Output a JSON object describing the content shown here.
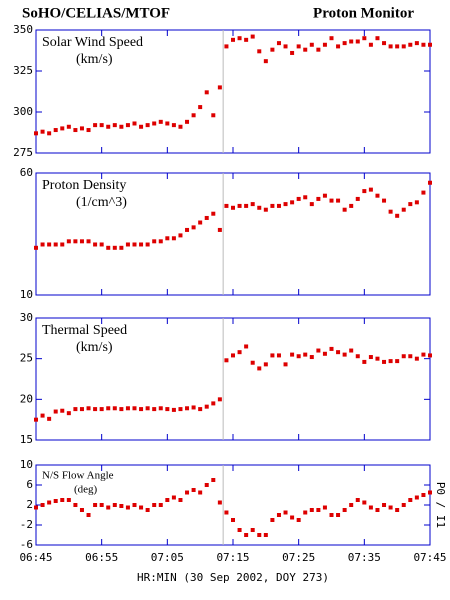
{
  "chart_data": [
    {
      "type": "scatter",
      "title": "SoHO/CELIAS/MTOF",
      "subtitle": "Proton Monitor",
      "label": "Solar Wind Speed",
      "unit": "(km/s)",
      "color": "#dd0000",
      "vline": 433.5,
      "x": [
        405,
        406,
        407,
        408,
        409,
        410,
        411,
        412,
        413,
        414,
        415,
        416,
        417,
        418,
        419,
        420,
        421,
        422,
        423,
        424,
        425,
        426,
        427,
        428,
        429,
        430,
        431,
        432,
        433,
        434,
        435,
        436,
        437,
        438,
        439,
        440,
        441,
        442,
        443,
        444,
        445,
        446,
        447,
        448,
        449,
        450,
        451,
        452,
        453,
        454,
        455,
        456,
        457,
        458,
        459,
        460,
        461,
        462,
        463,
        464,
        465
      ],
      "values": [
        287,
        288,
        287,
        289,
        290,
        291,
        289,
        290,
        289,
        292,
        292,
        291,
        292,
        291,
        292,
        293,
        291,
        292,
        293,
        294,
        293,
        292,
        291,
        294,
        298,
        303,
        312,
        298,
        315,
        340,
        344,
        345,
        344,
        346,
        337,
        331,
        338,
        342,
        340,
        336,
        340,
        338,
        341,
        338,
        341,
        345,
        340,
        342,
        343,
        343,
        345,
        341,
        345,
        342,
        340,
        340,
        340,
        341,
        342,
        341,
        341
      ],
      "xlim": [
        405,
        465
      ],
      "xticks": [
        405,
        415,
        425,
        435,
        445,
        455,
        465
      ],
      "ylim": [
        275,
        350
      ],
      "yticks": [
        275,
        300,
        325,
        350
      ]
    },
    {
      "type": "scatter",
      "label": "Proton Density",
      "unit": "(1/cm^3)",
      "color": "#dd0000",
      "vline": 433.5,
      "log_scale": true,
      "x": [
        405,
        406,
        407,
        408,
        409,
        410,
        411,
        412,
        413,
        414,
        415,
        416,
        417,
        418,
        419,
        420,
        421,
        422,
        423,
        424,
        425,
        426,
        427,
        428,
        429,
        430,
        431,
        432,
        433,
        434,
        435,
        436,
        437,
        438,
        439,
        440,
        441,
        442,
        443,
        444,
        445,
        446,
        447,
        448,
        449,
        450,
        451,
        452,
        453,
        454,
        455,
        456,
        457,
        458,
        459,
        460,
        461,
        462,
        463,
        464,
        465
      ],
      "values": [
        20,
        21,
        21,
        21,
        21,
        22,
        22,
        22,
        22,
        21,
        21,
        20,
        20,
        20,
        21,
        21,
        21,
        21,
        22,
        22,
        23,
        23,
        24,
        26,
        27,
        29,
        31,
        33,
        26,
        37,
        36,
        37,
        37,
        38,
        36,
        35,
        37,
        37,
        38,
        39,
        41,
        42,
        38,
        41,
        43,
        40,
        40,
        35,
        37,
        41,
        46,
        47,
        43,
        40,
        34,
        32,
        35,
        38,
        39,
        45,
        52
      ],
      "xlim": [
        405,
        465
      ],
      "xticks": [
        405,
        415,
        425,
        435,
        445,
        455,
        465
      ],
      "ylim": [
        10,
        60
      ],
      "yticks": [
        10,
        60
      ]
    },
    {
      "type": "scatter",
      "label": "Thermal Speed",
      "unit": "(km/s)",
      "color": "#dd0000",
      "vline": 433.5,
      "x": [
        405,
        406,
        407,
        408,
        409,
        410,
        411,
        412,
        413,
        414,
        415,
        416,
        417,
        418,
        419,
        420,
        421,
        422,
        423,
        424,
        425,
        426,
        427,
        428,
        429,
        430,
        431,
        432,
        433,
        434,
        435,
        436,
        437,
        438,
        439,
        440,
        441,
        442,
        443,
        444,
        445,
        446,
        447,
        448,
        449,
        450,
        451,
        452,
        453,
        454,
        455,
        456,
        457,
        458,
        459,
        460,
        461,
        462,
        463,
        464,
        465
      ],
      "values": [
        17.5,
        18,
        17.6,
        18.5,
        18.6,
        18.3,
        18.8,
        18.8,
        18.9,
        18.8,
        18.8,
        18.9,
        18.9,
        18.8,
        18.9,
        18.9,
        18.8,
        18.9,
        18.8,
        18.9,
        18.8,
        18.7,
        18.8,
        18.9,
        19.0,
        18.8,
        19.1,
        19.5,
        20.0,
        24.8,
        25.4,
        25.8,
        26.5,
        24.5,
        23.8,
        24.3,
        25.4,
        25.4,
        24.3,
        25.5,
        25.3,
        25.5,
        25.2,
        26.0,
        25.6,
        26.2,
        25.8,
        25.5,
        26.0,
        25.3,
        24.6,
        25.2,
        25.0,
        24.6,
        24.7,
        24.7,
        25.3,
        25.3,
        25.0,
        25.5,
        25.4
      ],
      "xlim": [
        405,
        465
      ],
      "xticks": [
        405,
        415,
        425,
        435,
        445,
        455,
        465
      ],
      "ylim": [
        15,
        30
      ],
      "yticks": [
        15,
        20,
        25,
        30
      ]
    },
    {
      "type": "scatter",
      "label": "N/S Flow Angle",
      "unit": "(deg)",
      "annotation": "P0 / I1",
      "color": "#dd0000",
      "vline": 433.5,
      "xlabel": "HR:MIN (30 Sep 2002, DOY 273)",
      "x": [
        405,
        406,
        407,
        408,
        409,
        410,
        411,
        412,
        413,
        414,
        415,
        416,
        417,
        418,
        419,
        420,
        421,
        422,
        423,
        424,
        425,
        426,
        427,
        428,
        429,
        430,
        431,
        432,
        433,
        434,
        435,
        436,
        437,
        438,
        439,
        440,
        441,
        442,
        443,
        444,
        445,
        446,
        447,
        448,
        449,
        450,
        451,
        452,
        453,
        454,
        455,
        456,
        457,
        458,
        459,
        460,
        461,
        462,
        463,
        464,
        465
      ],
      "values": [
        1.5,
        2,
        2.5,
        2.8,
        3,
        3,
        2,
        1,
        0,
        2,
        2,
        1.5,
        2,
        1.8,
        1.5,
        2,
        1.5,
        1,
        2,
        2,
        3,
        3.5,
        3,
        4.5,
        5,
        4.5,
        6,
        7,
        2.5,
        0.5,
        -1,
        -3,
        -4,
        -3,
        -4,
        -4,
        -1,
        0,
        0.5,
        -0.5,
        -1,
        0.5,
        1,
        1,
        1.5,
        0,
        0,
        1,
        2,
        3,
        2.5,
        1.5,
        1,
        2,
        1.5,
        1,
        2,
        3,
        3.5,
        4,
        4.5
      ],
      "xlim": [
        405,
        465
      ],
      "xticks": [
        {
          "value": 405,
          "label": "06:45"
        },
        {
          "value": 415,
          "label": "06:55"
        },
        {
          "value": 425,
          "label": "07:05"
        },
        {
          "value": 435,
          "label": "07:15"
        },
        {
          "value": 445,
          "label": "07:25"
        },
        {
          "value": 455,
          "label": "07:35"
        },
        {
          "value": 465,
          "label": "07:45"
        }
      ],
      "ylim": [
        -6,
        10
      ],
      "yticks": [
        -6,
        -2,
        2,
        6,
        10
      ]
    }
  ]
}
